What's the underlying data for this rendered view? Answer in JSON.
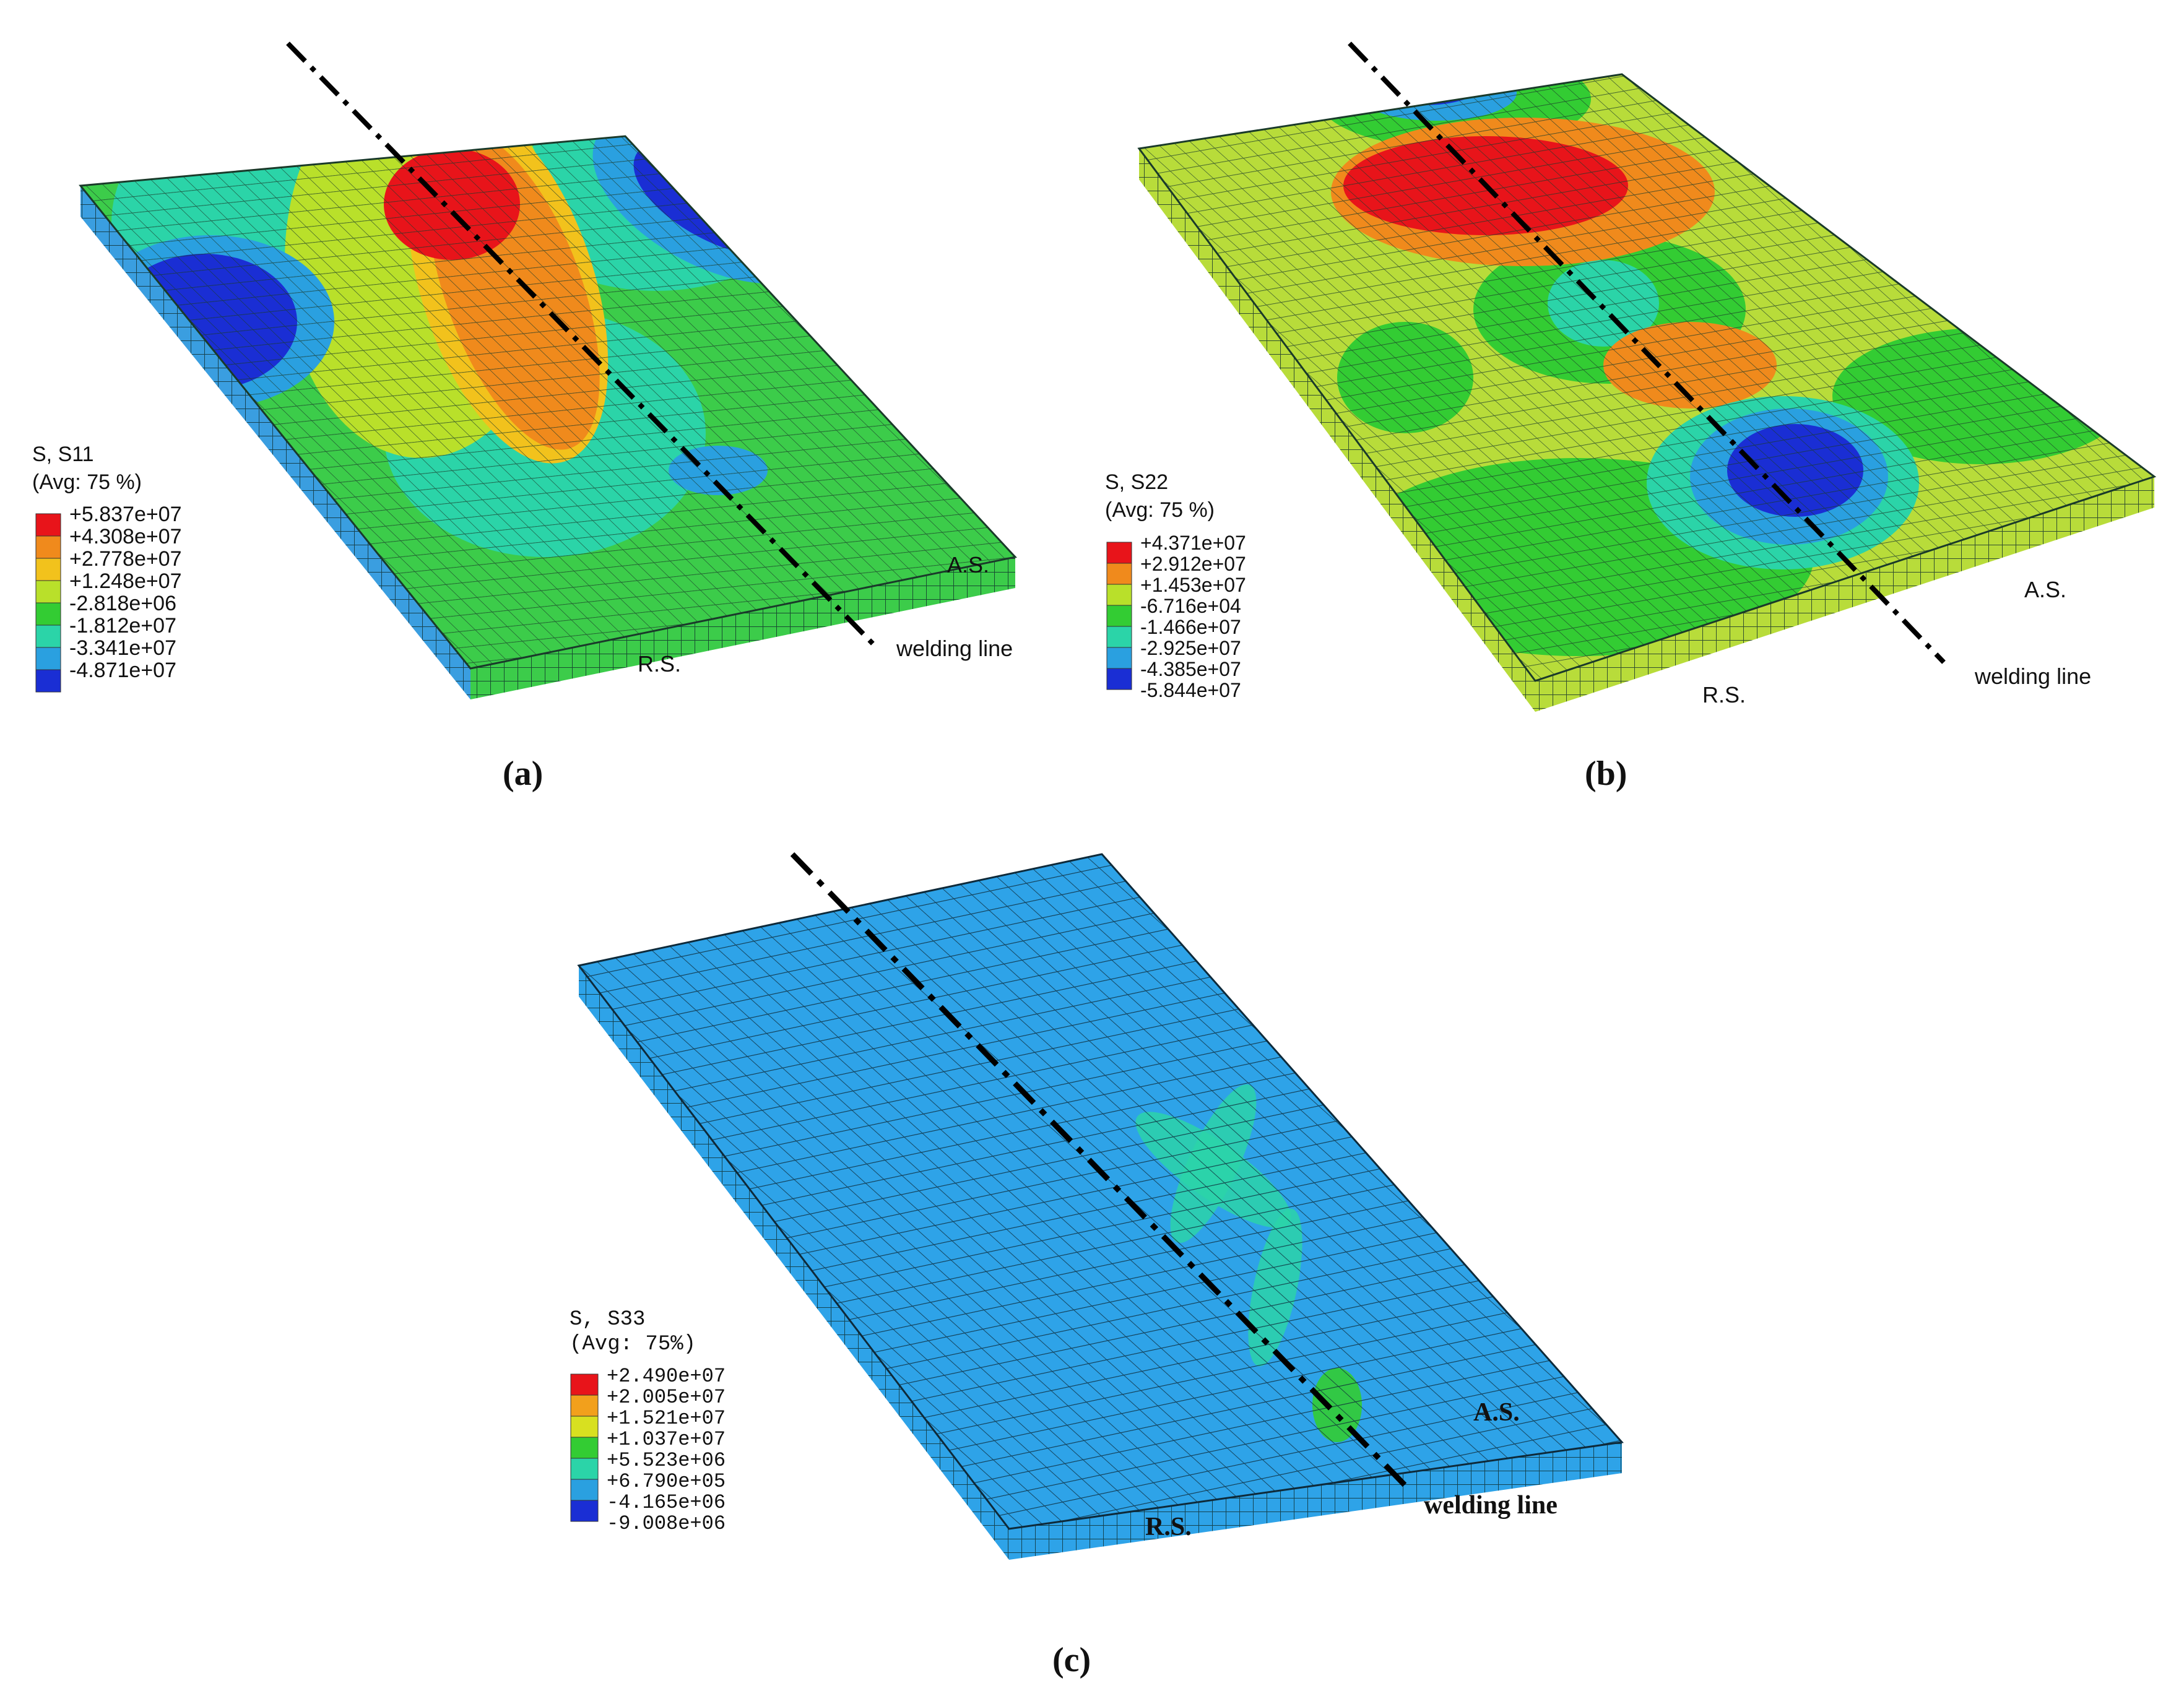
{
  "panels": [
    {
      "id": "a",
      "caption": "(a)",
      "legend": {
        "title": "S, S11",
        "subtitle": "(Avg: 75 %)",
        "values": [
          "+5.837e+07",
          "+4.308e+07",
          "+2.778e+07",
          "+1.248e+07",
          "-2.818e+06",
          "-1.812e+07",
          "-3.341e+07",
          "-4.871e+07"
        ],
        "colors": [
          "#e8141a",
          "#f08a1c",
          "#f2c21c",
          "#b9e02a",
          "#33cc33",
          "#2bd4a8",
          "#2aa0e0",
          "#1a2ed4"
        ]
      },
      "labels": {
        "as": "A.S.",
        "rs": "R.S.",
        "weld": "welding line"
      }
    },
    {
      "id": "b",
      "caption": "(b)",
      "legend": {
        "title": "S, S22",
        "subtitle": "(Avg: 75 %)",
        "values": [
          "+4.371e+07",
          "+2.912e+07",
          "+1.453e+07",
          "-6.716e+04",
          "-1.466e+07",
          "-2.925e+07",
          "-4.385e+07",
          "-5.844e+07"
        ],
        "colors": [
          "#e8141a",
          "#f08a1c",
          "#b9e02a",
          "#33cc33",
          "#2bd4a8",
          "#2aa0e0",
          "#1a2ed4"
        ]
      },
      "labels": {
        "as": "A.S.",
        "rs": "R.S.",
        "weld": "welding line"
      }
    },
    {
      "id": "c",
      "caption": "(c)",
      "legend": {
        "title": "S, S33",
        "subtitle": "(Avg: 75%)",
        "values": [
          "+2.490e+07",
          "+2.005e+07",
          "+1.521e+07",
          "+1.037e+07",
          "+5.523e+06",
          "+6.790e+05",
          "-4.165e+06",
          "-9.008e+06"
        ],
        "colors": [
          "#e8141a",
          "#f2a01c",
          "#d8e020",
          "#33cc33",
          "#2bd4a8",
          "#2aa0e0",
          "#1a2ed4"
        ]
      },
      "labels": {
        "as": "A.S.",
        "rs": "R.S.",
        "weld": "welding line"
      }
    }
  ],
  "colors": {
    "mesh_line": "#1a3a2a",
    "plate_c": "#2ea3e8",
    "plate_b": "#b8dc3a",
    "plate_a": "#3ccc4a"
  }
}
